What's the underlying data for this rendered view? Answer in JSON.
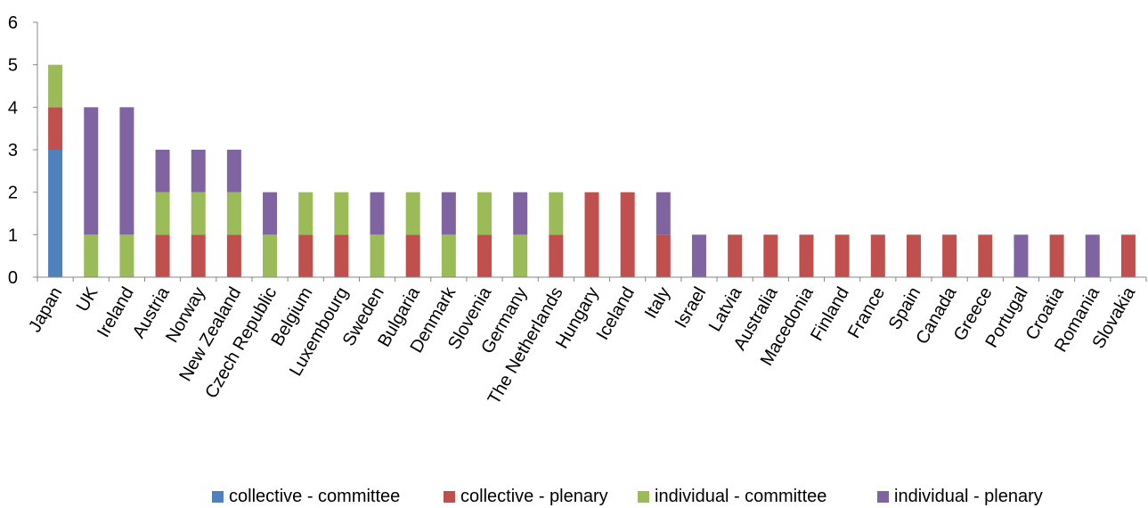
{
  "chart_data": {
    "type": "bar",
    "stacked": true,
    "title": "",
    "xlabel": "",
    "ylabel": "",
    "ylim": [
      0,
      6
    ],
    "yticks": [
      0,
      1,
      2,
      3,
      4,
      5,
      6
    ],
    "grid": false,
    "legend_position": "bottom",
    "categories": [
      "Japan",
      "UK",
      "Ireland",
      "Austria",
      "Norway",
      "New Zealand",
      "Czech Republic",
      "Belgium",
      "Luxembourg",
      "Sweden",
      "Bulgaria",
      "Denmark",
      "Slovenia",
      "Germany",
      "The Netherlands",
      "Hungary",
      "Iceland",
      "Italy",
      "Israel",
      "Latvia",
      "Australia",
      "Macedonia",
      "Finland",
      "France",
      "Spain",
      "Canada",
      "Greece",
      "Portugal",
      "Croatia",
      "Romania",
      "Slovakia"
    ],
    "series": [
      {
        "name": "collective - committee",
        "color": "#4F81BD",
        "values": [
          3,
          0,
          0,
          0,
          0,
          0,
          0,
          0,
          0,
          0,
          0,
          0,
          0,
          0,
          0,
          0,
          0,
          0,
          0,
          0,
          0,
          0,
          0,
          0,
          0,
          0,
          0,
          0,
          0,
          0,
          0
        ]
      },
      {
        "name": "collective - plenary",
        "color": "#C0504D",
        "values": [
          1,
          0,
          0,
          1,
          1,
          1,
          0,
          1,
          1,
          0,
          1,
          0,
          1,
          0,
          1,
          2,
          2,
          1,
          0,
          1,
          1,
          1,
          1,
          1,
          1,
          1,
          1,
          0,
          1,
          0,
          1
        ]
      },
      {
        "name": "individual - committee",
        "color": "#9BBB59",
        "values": [
          1,
          1,
          1,
          1,
          1,
          1,
          1,
          1,
          1,
          1,
          1,
          1,
          1,
          1,
          1,
          0,
          0,
          0,
          0,
          0,
          0,
          0,
          0,
          0,
          0,
          0,
          0,
          0,
          0,
          0,
          0
        ]
      },
      {
        "name": "individual - plenary",
        "color": "#8064A2",
        "values": [
          0,
          3,
          3,
          1,
          1,
          1,
          1,
          0,
          0,
          1,
          0,
          1,
          0,
          1,
          0,
          0,
          0,
          1,
          1,
          0,
          0,
          0,
          0,
          0,
          0,
          0,
          0,
          1,
          0,
          1,
          0
        ]
      }
    ]
  }
}
